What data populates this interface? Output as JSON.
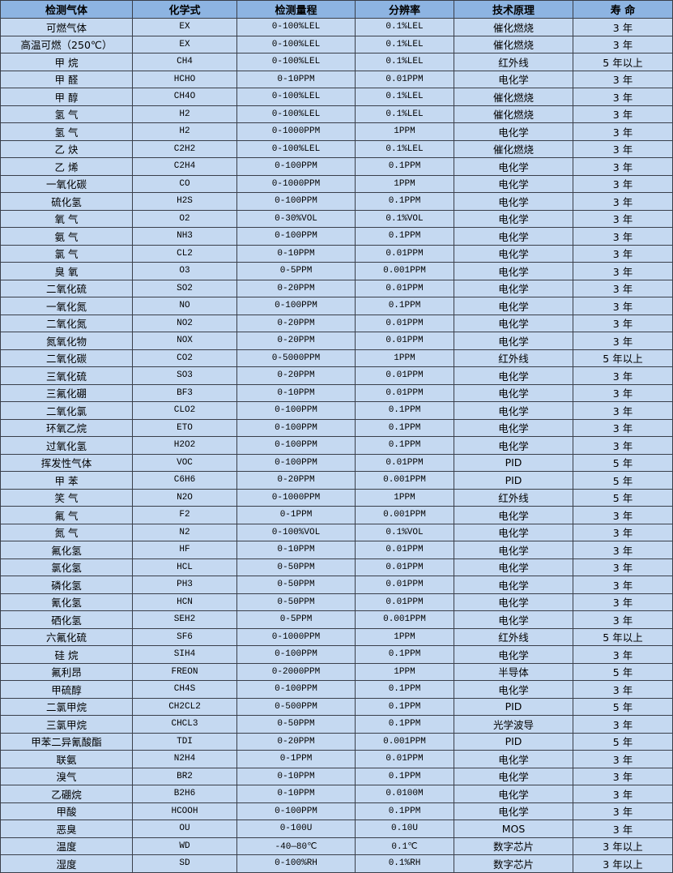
{
  "colors": {
    "header_bg": "#8db4e2",
    "row_bg": "#c5d9f1",
    "border": "#3a3f4a"
  },
  "headers": [
    "检测气体",
    "化学式",
    "检测量程",
    "分辨率",
    "技术原理",
    "寿 命"
  ],
  "rows": [
    [
      "可燃气体",
      "EX",
      "0-100%LEL",
      "0.1%LEL",
      "催化燃烧",
      "3 年"
    ],
    [
      "高温可燃（250℃）",
      "EX",
      "0-100%LEL",
      "0.1%LEL",
      "催化燃烧",
      "3 年"
    ],
    [
      "甲 烷",
      "CH4",
      "0-100%LEL",
      "0.1%LEL",
      "红外线",
      "5 年以上"
    ],
    [
      "甲 醛",
      "HCHO",
      "0-10PPM",
      "0.01PPM",
      "电化学",
      "3 年"
    ],
    [
      "甲 醇",
      "CH4O",
      "0-100%LEL",
      "0.1%LEL",
      "催化燃烧",
      "3 年"
    ],
    [
      "氢 气",
      "H2",
      "0-100%LEL",
      "0.1%LEL",
      "催化燃烧",
      "3 年"
    ],
    [
      "氢 气",
      "H2",
      "0-1000PPM",
      "1PPM",
      "电化学",
      "3 年"
    ],
    [
      "乙 炔",
      "C2H2",
      "0-100%LEL",
      "0.1%LEL",
      "催化燃烧",
      "3 年"
    ],
    [
      "乙 烯",
      "C2H4",
      "0-100PPM",
      "0.1PPM",
      "电化学",
      "3 年"
    ],
    [
      "一氧化碳",
      "CO",
      "0-1000PPM",
      "1PPM",
      "电化学",
      "3 年"
    ],
    [
      "硫化氢",
      "H2S",
      "0-100PPM",
      "0.1PPM",
      "电化学",
      "3 年"
    ],
    [
      "氧 气",
      "O2",
      "0-30%VOL",
      "0.1%VOL",
      "电化学",
      "3 年"
    ],
    [
      "氨 气",
      "NH3",
      "0-100PPM",
      "0.1PPM",
      "电化学",
      "3 年"
    ],
    [
      "氯 气",
      "CL2",
      "0-10PPM",
      "0.01PPM",
      "电化学",
      "3 年"
    ],
    [
      "臭 氧",
      "O3",
      "0-5PPM",
      "0.001PPM",
      "电化学",
      "3 年"
    ],
    [
      "二氧化硫",
      "SO2",
      "0-20PPM",
      "0.01PPM",
      "电化学",
      "3 年"
    ],
    [
      "一氧化氮",
      "NO",
      "0-100PPM",
      "0.1PPM",
      "电化学",
      "3 年"
    ],
    [
      "二氧化氮",
      "NO2",
      "0-20PPM",
      "0.01PPM",
      "电化学",
      "3 年"
    ],
    [
      "氮氧化物",
      "NOX",
      "0-20PPM",
      "0.01PPM",
      "电化学",
      "3 年"
    ],
    [
      "二氧化碳",
      "CO2",
      "0-5000PPM",
      "1PPM",
      "红外线",
      "5 年以上"
    ],
    [
      "三氧化硫",
      "SO3",
      "0-20PPM",
      "0.01PPM",
      "电化学",
      "3 年"
    ],
    [
      "三氟化硼",
      "BF3",
      "0-10PPM",
      "0.01PPM",
      "电化学",
      "3 年"
    ],
    [
      "二氧化氯",
      "CLO2",
      "0-100PPM",
      "0.1PPM",
      "电化学",
      "3 年"
    ],
    [
      "环氧乙烷",
      "ETO",
      "0-100PPM",
      "0.1PPM",
      "电化学",
      "3 年"
    ],
    [
      "过氧化氢",
      "H2O2",
      "0-100PPM",
      "0.1PPM",
      "电化学",
      "3 年"
    ],
    [
      "挥发性气体",
      "VOC",
      "0-100PPM",
      "0.01PPM",
      "PID",
      "5 年"
    ],
    [
      "甲 苯",
      "C6H6",
      "0-20PPM",
      "0.001PPM",
      "PID",
      "5 年"
    ],
    [
      "笑 气",
      "N2O",
      "0-1000PPM",
      "1PPM",
      "红外线",
      "5 年"
    ],
    [
      "氟 气",
      "F2",
      "0-1PPM",
      "0.001PPM",
      "电化学",
      "3 年"
    ],
    [
      "氮 气",
      "N2",
      "0-100%VOL",
      "0.1%VOL",
      "电化学",
      "3 年"
    ],
    [
      "氟化氢",
      "HF",
      "0-10PPM",
      "0.01PPM",
      "电化学",
      "3 年"
    ],
    [
      "氯化氢",
      "HCL",
      "0-50PPM",
      "0.01PPM",
      "电化学",
      "3 年"
    ],
    [
      "磷化氢",
      "PH3",
      "0-50PPM",
      "0.01PPM",
      "电化学",
      "3 年"
    ],
    [
      "氰化氢",
      "HCN",
      "0-50PPM",
      "0.01PPM",
      "电化学",
      "3 年"
    ],
    [
      "硒化氢",
      "SEH2",
      "0-5PPM",
      "0.001PPM",
      "电化学",
      "3 年"
    ],
    [
      "六氟化硫",
      "SF6",
      "0-1000PPM",
      "1PPM",
      "红外线",
      "5 年以上"
    ],
    [
      "硅 烷",
      "SIH4",
      "0-100PPM",
      "0.1PPM",
      "电化学",
      "3 年"
    ],
    [
      "氟利昂",
      "FREON",
      "0-2000PPM",
      "1PPM",
      "半导体",
      "5 年"
    ],
    [
      "甲硫醇",
      "CH4S",
      "0-100PPM",
      "0.1PPM",
      "电化学",
      "3 年"
    ],
    [
      "二氯甲烷",
      "CH2CL2",
      "0-500PPM",
      "0.1PPM",
      "PID",
      "5 年"
    ],
    [
      "三氯甲烷",
      "CHCL3",
      "0-50PPM",
      "0.1PPM",
      "光学波导",
      "3 年"
    ],
    [
      "甲苯二异氰酸酯",
      "TDI",
      "0-20PPM",
      "0.001PPM",
      "PID",
      "5 年"
    ],
    [
      "联氨",
      "N2H4",
      "0-1PPM",
      "0.01PPM",
      "电化学",
      "3 年"
    ],
    [
      "溴气",
      "BR2",
      "0-10PPM",
      "0.1PPM",
      "电化学",
      "3 年"
    ],
    [
      "乙硼烷",
      "B2H6",
      "0-10PPM",
      "0.0100M",
      "电化学",
      "3 年"
    ],
    [
      "甲酸",
      "HCOOH",
      "0-100PPM",
      "0.1PPM",
      "电化学",
      "3 年"
    ],
    [
      "恶臭",
      "OU",
      "0-100U",
      "0.10U",
      "MOS",
      "3 年"
    ],
    [
      "温度",
      "WD",
      "-40—80℃",
      "0.1℃",
      "数字芯片",
      "3 年以上"
    ],
    [
      "湿度",
      "SD",
      "0-100%RH",
      "0.1%RH",
      "数字芯片",
      "3 年以上"
    ]
  ]
}
